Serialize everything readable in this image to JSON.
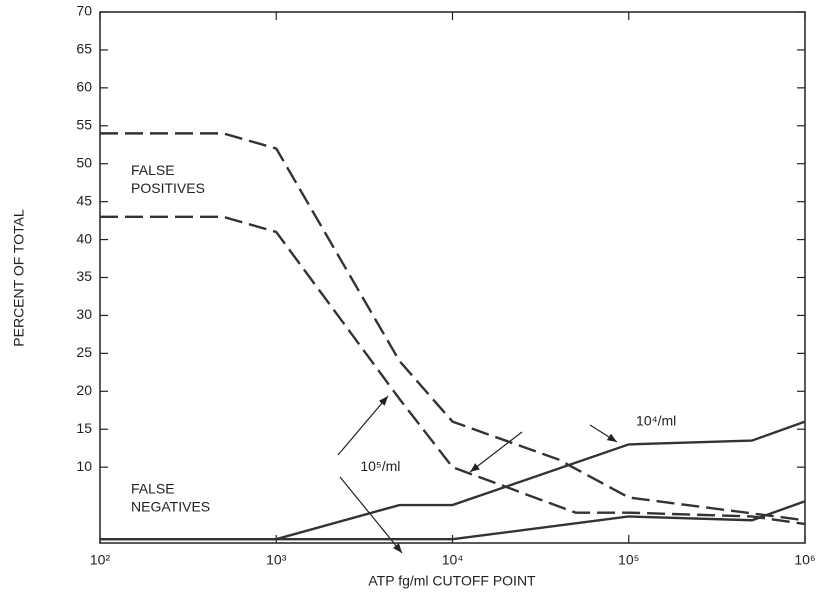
{
  "chart_data": {
    "type": "line",
    "xlabel": "ATP fg/ml CUTOFF POINT",
    "ylabel": "PERCENT OF TOTAL",
    "xscale": "log",
    "xlim": [
      100,
      1000000
    ],
    "ylim": [
      0,
      70
    ],
    "xticks": [
      {
        "value": 100,
        "label": "10²"
      },
      {
        "value": 1000,
        "label": "10³"
      },
      {
        "value": 10000,
        "label": "10⁴"
      },
      {
        "value": 100000,
        "label": "10⁵"
      },
      {
        "value": 1000000,
        "label": "10⁶"
      }
    ],
    "yticks": [
      10,
      15,
      20,
      25,
      30,
      35,
      40,
      45,
      50,
      55,
      60,
      65,
      70
    ],
    "series": [
      {
        "color": "#333333",
        "dashed": true,
        "x": [
          100,
          500,
          1000,
          5000,
          10000,
          40000,
          100000,
          1000000
        ],
        "values": [
          54,
          54,
          52,
          24,
          16,
          11,
          6,
          3
        ]
      },
      {
        "color": "#333333",
        "dashed": true,
        "x": [
          100,
          500,
          1000,
          5000,
          10000,
          50000,
          100000,
          500000,
          1000000
        ],
        "values": [
          43,
          43,
          41,
          19,
          10,
          4,
          4,
          3.5,
          2.5
        ]
      },
      {
        "color": "#333333",
        "dashed": false,
        "x": [
          100,
          1000,
          5000,
          10000,
          100000,
          500000,
          1000000
        ],
        "values": [
          0.5,
          0.5,
          5,
          5,
          13,
          13.5,
          16
        ]
      },
      {
        "color": "#333333",
        "dashed": false,
        "x": [
          100,
          1000,
          10000,
          100000,
          500000,
          1000000
        ],
        "values": [
          0.5,
          0.5,
          0.5,
          3.5,
          3,
          5.5
        ]
      }
    ],
    "annotations": [
      {
        "lines": [
          "FALSE",
          "POSITIVES"
        ],
        "x": 150,
        "y": 49
      },
      {
        "lines": [
          "FALSE",
          "NEGATIVES"
        ],
        "x": 150,
        "y": 7
      },
      {
        "lines": [
          "10⁴/ml"
        ],
        "x": 110000,
        "y": 16
      },
      {
        "lines": [
          "10⁵/ml"
        ],
        "x": 3000,
        "y": 10
      }
    ]
  }
}
